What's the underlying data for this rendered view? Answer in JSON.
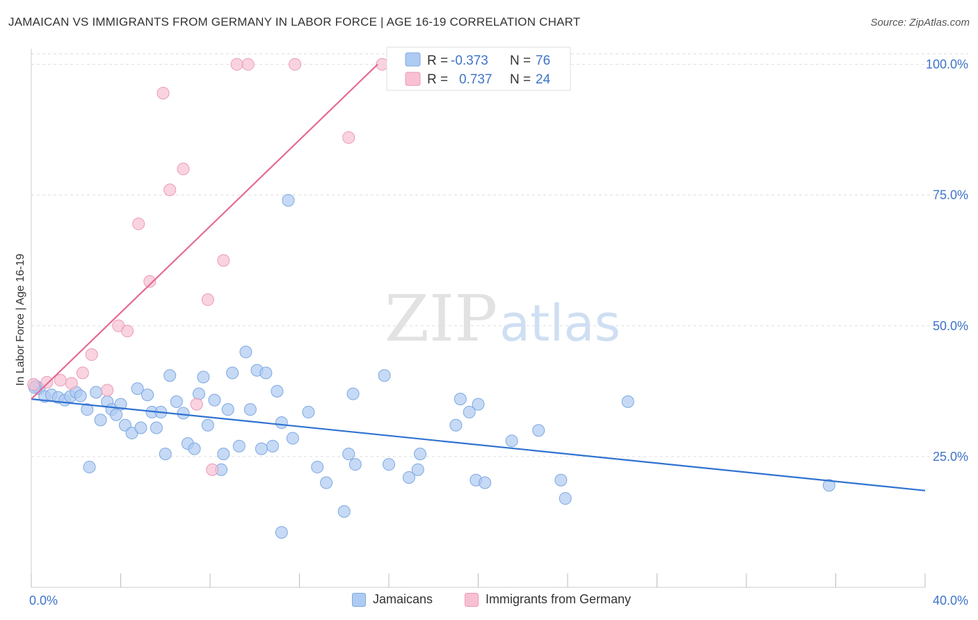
{
  "title": "JAMAICAN VS IMMIGRANTS FROM GERMANY IN LABOR FORCE | AGE 16-19 CORRELATION CHART",
  "source": "Source: ZipAtlas.com",
  "colors": {
    "blue_fill": "#aecbf2",
    "blue_stroke": "#7da7e0",
    "blue_line": "#2f72d1",
    "pink_fill": "#f7c1d3",
    "pink_stroke": "#eb9ab6",
    "pink_line": "#e46a93",
    "axis_text": "#3e74c9",
    "grid": "#dddddd"
  },
  "legend": {
    "row1": {
      "r_label": "R =",
      "r_value": "-0.373",
      "n_label": "N =",
      "n_value": "76"
    },
    "row2": {
      "r_label": "R =",
      "r_value": "0.737",
      "n_label": "N =",
      "n_value": "24"
    }
  },
  "bottom_legend": {
    "series1": "Jamaicans",
    "series2": "Immigrants from Germany"
  },
  "watermark": {
    "part1": "ZIP",
    "part2": "atlas"
  },
  "chart_data": {
    "type": "scatter",
    "title": "JAMAICAN VS IMMIGRANTS FROM GERMANY IN LABOR FORCE | AGE 16-19 CORRELATION CHART",
    "xlabel": "",
    "ylabel": "In Labor Force | Age 16-19",
    "xlim": [
      0,
      40
    ],
    "ylim": [
      0,
      103
    ],
    "x_tick_labels": [
      "0.0%",
      "40.0%"
    ],
    "y_ticks": [
      25,
      50,
      75,
      100
    ],
    "y_tick_labels": [
      "25.0%",
      "50.0%",
      "75.0%",
      "100.0%"
    ],
    "grid": true,
    "legend_position": "top-center",
    "series": [
      {
        "name": "Jamaicans",
        "color": "#aecbf2",
        "trend": {
          "x": [
            0,
            40
          ],
          "y": [
            36.0,
            18.5
          ]
        },
        "points": [
          {
            "x": 0.2,
            "y": 38.5
          },
          {
            "x": 0.35,
            "y": 38.0
          },
          {
            "x": 0.6,
            "y": 36.5
          },
          {
            "x": 0.9,
            "y": 36.8
          },
          {
            "x": 1.2,
            "y": 36.3
          },
          {
            "x": 1.5,
            "y": 35.8
          },
          {
            "x": 1.75,
            "y": 36.5
          },
          {
            "x": 2.0,
            "y": 37.3
          },
          {
            "x": 2.2,
            "y": 36.6
          },
          {
            "x": 2.5,
            "y": 34.0
          },
          {
            "x": 2.6,
            "y": 23.0
          },
          {
            "x": 2.9,
            "y": 37.3
          },
          {
            "x": 3.1,
            "y": 32.0
          },
          {
            "x": 3.4,
            "y": 35.5
          },
          {
            "x": 3.6,
            "y": 34.0
          },
          {
            "x": 3.8,
            "y": 33.0
          },
          {
            "x": 4.0,
            "y": 35.0
          },
          {
            "x": 4.2,
            "y": 31.0
          },
          {
            "x": 4.5,
            "y": 29.5
          },
          {
            "x": 4.75,
            "y": 38.0
          },
          {
            "x": 4.9,
            "y": 30.5
          },
          {
            "x": 5.2,
            "y": 36.8
          },
          {
            "x": 5.4,
            "y": 33.5
          },
          {
            "x": 5.6,
            "y": 30.5
          },
          {
            "x": 5.8,
            "y": 33.5
          },
          {
            "x": 6.0,
            "y": 25.5
          },
          {
            "x": 6.2,
            "y": 40.5
          },
          {
            "x": 6.5,
            "y": 35.5
          },
          {
            "x": 6.8,
            "y": 33.3
          },
          {
            "x": 7.0,
            "y": 27.5
          },
          {
            "x": 7.3,
            "y": 26.5
          },
          {
            "x": 7.5,
            "y": 37.0
          },
          {
            "x": 7.7,
            "y": 40.2
          },
          {
            "x": 7.9,
            "y": 31.0
          },
          {
            "x": 8.2,
            "y": 35.8
          },
          {
            "x": 8.5,
            "y": 22.5
          },
          {
            "x": 8.6,
            "y": 25.5
          },
          {
            "x": 8.8,
            "y": 34.0
          },
          {
            "x": 9.0,
            "y": 41.0
          },
          {
            "x": 9.3,
            "y": 27.0
          },
          {
            "x": 9.6,
            "y": 45.0
          },
          {
            "x": 9.8,
            "y": 34.0
          },
          {
            "x": 10.1,
            "y": 41.5
          },
          {
            "x": 10.3,
            "y": 26.5
          },
          {
            "x": 10.5,
            "y": 41.0
          },
          {
            "x": 10.8,
            "y": 27.0
          },
          {
            "x": 11.0,
            "y": 37.5
          },
          {
            "x": 11.2,
            "y": 31.5
          },
          {
            "x": 11.5,
            "y": 74.0
          },
          {
            "x": 11.7,
            "y": 28.5
          },
          {
            "x": 11.2,
            "y": 10.5
          },
          {
            "x": 12.4,
            "y": 33.5
          },
          {
            "x": 12.8,
            "y": 23.0
          },
          {
            "x": 13.2,
            "y": 20.0
          },
          {
            "x": 14.0,
            "y": 14.5
          },
          {
            "x": 14.2,
            "y": 25.5
          },
          {
            "x": 14.4,
            "y": 37.0
          },
          {
            "x": 14.5,
            "y": 23.5
          },
          {
            "x": 15.8,
            "y": 40.5
          },
          {
            "x": 16.0,
            "y": 23.5
          },
          {
            "x": 16.9,
            "y": 21.0
          },
          {
            "x": 17.3,
            "y": 22.5
          },
          {
            "x": 17.4,
            "y": 25.5
          },
          {
            "x": 19.0,
            "y": 31.0
          },
          {
            "x": 19.2,
            "y": 36.0
          },
          {
            "x": 19.6,
            "y": 33.5
          },
          {
            "x": 20.0,
            "y": 35.0
          },
          {
            "x": 19.9,
            "y": 20.5
          },
          {
            "x": 20.3,
            "y": 20.0
          },
          {
            "x": 21.5,
            "y": 28.0
          },
          {
            "x": 22.7,
            "y": 30.0
          },
          {
            "x": 23.7,
            "y": 20.5
          },
          {
            "x": 23.9,
            "y": 17.0
          },
          {
            "x": 26.7,
            "y": 35.5
          },
          {
            "x": 35.7,
            "y": 19.5
          },
          {
            "x": 0.15,
            "y": 38.2
          }
        ]
      },
      {
        "name": "Immigrants from Germany",
        "color": "#f7c1d3",
        "trend": {
          "x": [
            0,
            15.5
          ],
          "y": [
            36.0,
            100.0
          ]
        },
        "points": [
          {
            "x": 0.1,
            "y": 38.8
          },
          {
            "x": 0.7,
            "y": 39.2
          },
          {
            "x": 1.3,
            "y": 39.6
          },
          {
            "x": 1.8,
            "y": 39.0
          },
          {
            "x": 2.3,
            "y": 41.0
          },
          {
            "x": 2.7,
            "y": 44.5
          },
          {
            "x": 3.4,
            "y": 37.7
          },
          {
            "x": 3.9,
            "y": 50.0
          },
          {
            "x": 4.3,
            "y": 49.0
          },
          {
            "x": 4.8,
            "y": 69.5
          },
          {
            "x": 5.3,
            "y": 58.5
          },
          {
            "x": 5.9,
            "y": 94.5
          },
          {
            "x": 6.2,
            "y": 76.0
          },
          {
            "x": 6.8,
            "y": 80.0
          },
          {
            "x": 7.4,
            "y": 35.0
          },
          {
            "x": 7.9,
            "y": 55.0
          },
          {
            "x": 8.1,
            "y": 22.5
          },
          {
            "x": 8.6,
            "y": 62.5
          },
          {
            "x": 9.2,
            "y": 100.0
          },
          {
            "x": 9.7,
            "y": 100.0
          },
          {
            "x": 11.8,
            "y": 100.0
          },
          {
            "x": 14.2,
            "y": 86.0
          },
          {
            "x": 15.7,
            "y": 100.0
          },
          {
            "x": 16.6,
            "y": 100.0
          }
        ]
      }
    ]
  }
}
